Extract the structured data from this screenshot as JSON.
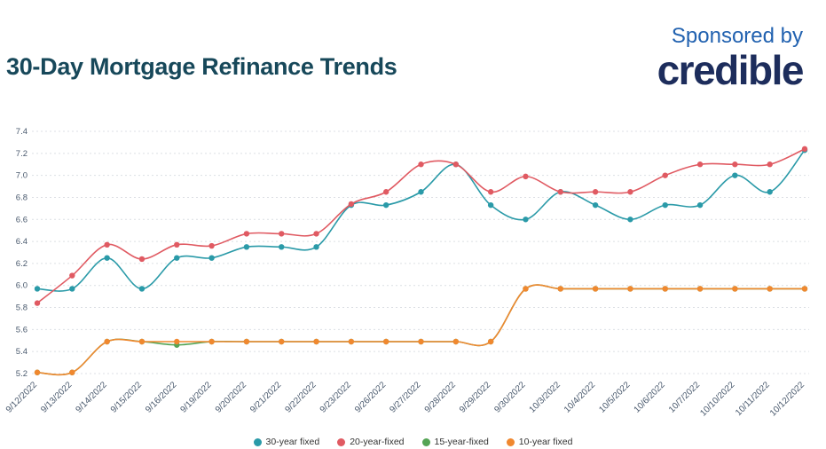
{
  "header": {
    "title": "30-Day Mortgage Refinance Trends",
    "sponsored_by": "Sponsored by",
    "sponsor_logo": "credible"
  },
  "colors": {
    "title": "#17485a",
    "sponsored_by": "#2262b0",
    "logo": "#1d2d5c",
    "axis_text": "#4a5a6e",
    "gridline": "#dcdfe4"
  },
  "chart_data": {
    "type": "line",
    "title": "30-Day Mortgage Refinance Trends",
    "xlabel": "",
    "ylabel": "",
    "ylim": [
      5.2,
      7.4
    ],
    "yticks": [
      5.2,
      5.4,
      5.6,
      5.8,
      6.0,
      6.2,
      6.4,
      6.6,
      6.8,
      7.0,
      7.2,
      7.4
    ],
    "grid": "horizontal-dashed",
    "legend_position": "bottom",
    "x": [
      "9/12/2022",
      "9/13/2022",
      "9/14/2022",
      "9/15/2022",
      "9/16/2022",
      "9/19/2022",
      "9/20/2022",
      "9/21/2022",
      "9/22/2022",
      "9/23/2022",
      "9/26/2022",
      "9/27/2022",
      "9/28/2022",
      "9/29/2022",
      "9/30/2022",
      "10/3/2022",
      "10/4/2022",
      "10/5/2022",
      "10/6/2022",
      "10/7/2022",
      "10/10/2022",
      "10/11/2022",
      "10/12/2022"
    ],
    "series": [
      {
        "name": "30-year fixed",
        "color": "#2a9aa8",
        "values": [
          5.97,
          5.97,
          6.25,
          5.97,
          6.25,
          6.25,
          6.35,
          6.35,
          6.35,
          6.73,
          6.73,
          6.85,
          7.1,
          6.73,
          6.6,
          6.85,
          6.73,
          6.6,
          6.73,
          6.73,
          7.0,
          6.85,
          7.23
        ]
      },
      {
        "name": "20-year-fixed",
        "color": "#e05a62",
        "values": [
          5.84,
          6.09,
          6.37,
          6.24,
          6.37,
          6.36,
          6.47,
          6.47,
          6.47,
          6.74,
          6.85,
          7.1,
          7.1,
          6.85,
          6.99,
          6.85,
          6.85,
          6.85,
          7.0,
          7.1,
          7.1,
          7.1,
          7.24
        ]
      },
      {
        "name": "15-year-fixed",
        "color": "#55a455",
        "values": [
          5.21,
          5.21,
          5.49,
          5.49,
          5.46,
          5.49,
          5.49,
          5.49,
          5.49,
          5.49,
          5.49,
          5.49,
          5.49,
          5.49,
          5.97,
          5.97,
          5.97,
          5.97,
          5.97,
          5.97,
          5.97,
          5.97,
          5.97
        ]
      },
      {
        "name": "10-year fixed",
        "color": "#f0882f",
        "values": [
          5.21,
          5.21,
          5.49,
          5.49,
          5.49,
          5.49,
          5.49,
          5.49,
          5.49,
          5.49,
          5.49,
          5.49,
          5.49,
          5.49,
          5.97,
          5.97,
          5.97,
          5.97,
          5.97,
          5.97,
          5.97,
          5.97,
          5.97
        ]
      }
    ]
  }
}
